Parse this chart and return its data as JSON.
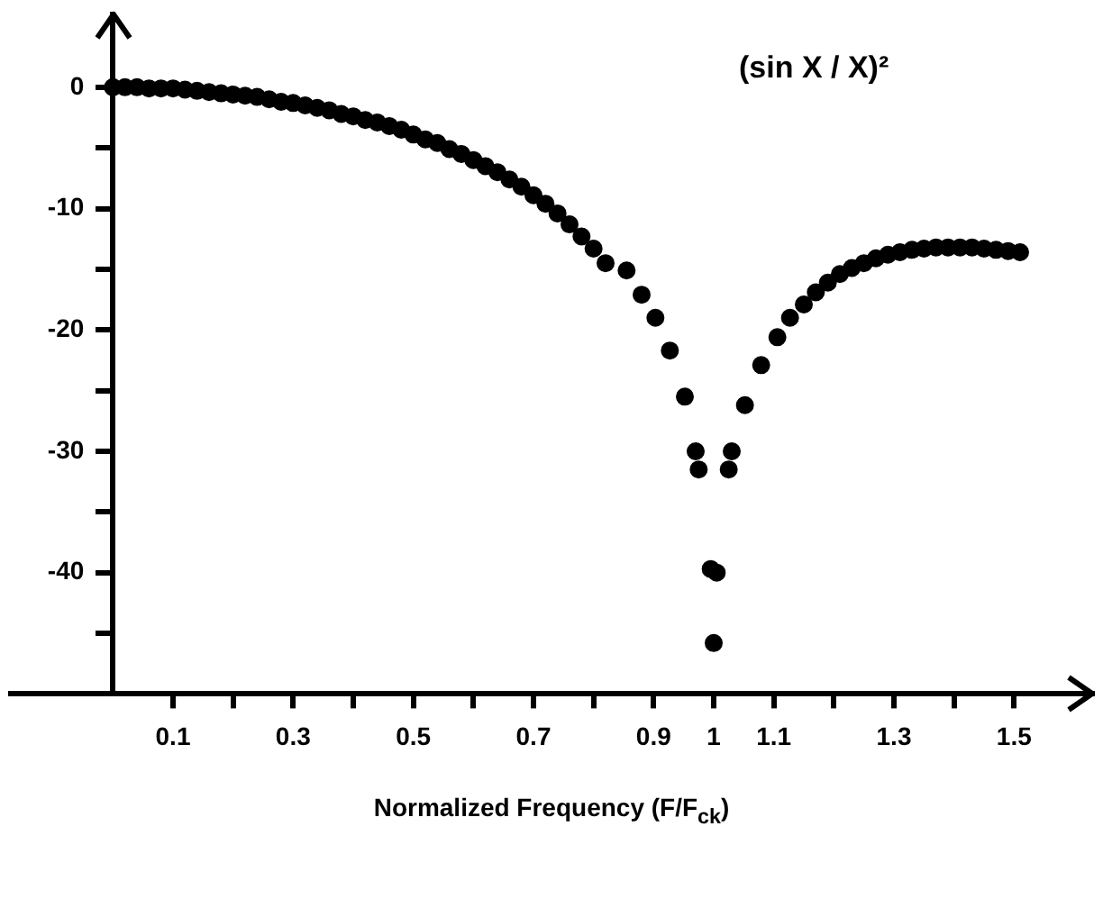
{
  "chart_data": {
    "type": "scatter",
    "xlabel": "Normalized Frequency (F/F$_{ck}$)",
    "annotations": [
      "(sin X / X)²"
    ],
    "marker": "circle",
    "grid": false,
    "legend": false,
    "xlim": [
      -0.17,
      1.63
    ],
    "ylim": [
      -50,
      6
    ],
    "xticks": [
      {
        "value": 0.1,
        "label": "0.1"
      },
      {
        "value": 0.2,
        "label": null
      },
      {
        "value": 0.3,
        "label": "0.3"
      },
      {
        "value": 0.4,
        "label": null
      },
      {
        "value": 0.5,
        "label": "0.5"
      },
      {
        "value": 0.6,
        "label": null
      },
      {
        "value": 0.7,
        "label": "0.7"
      },
      {
        "value": 0.8,
        "label": null
      },
      {
        "value": 0.9,
        "label": "0.9"
      },
      {
        "value": 1,
        "label": "1"
      },
      {
        "value": 1.1,
        "label": "1.1"
      },
      {
        "value": 1.2,
        "label": null
      },
      {
        "value": 1.3,
        "label": "1.3"
      },
      {
        "value": 1.4,
        "label": null
      },
      {
        "value": 1.5,
        "label": "1.5"
      }
    ],
    "yticks": [
      {
        "value": -45,
        "label": null
      },
      -40,
      {
        "value": -35,
        "label": null
      },
      -30,
      {
        "value": -25,
        "label": null
      },
      -20,
      {
        "value": -15,
        "label": null
      },
      -10,
      {
        "value": -5,
        "label": null
      },
      0
    ],
    "series": [
      {
        "color": "#000000",
        "x": [
          0,
          0.02,
          0.04,
          0.06,
          0.08,
          0.1,
          0.12,
          0.14,
          0.16,
          0.18,
          0.2,
          0.22,
          0.24,
          0.26,
          0.28,
          0.3,
          0.32,
          0.34,
          0.36,
          0.38,
          0.4,
          0.42,
          0.44,
          0.46,
          0.48,
          0.5,
          0.52,
          0.54,
          0.56,
          0.58,
          0.6,
          0.62,
          0.64,
          0.66,
          0.68,
          0.7,
          0.72,
          0.74,
          0.76,
          0.78,
          0.8,
          0.82,
          0.855,
          0.88,
          0.903,
          0.927,
          0.952,
          0.97,
          0.975,
          0.995,
          1.0,
          1.005,
          1.025,
          1.03,
          1.052,
          1.079,
          1.106,
          1.127,
          1.15,
          1.17,
          1.19,
          1.21,
          1.23,
          1.25,
          1.27,
          1.29,
          1.31,
          1.33,
          1.35,
          1.37,
          1.39,
          1.41,
          1.43,
          1.45,
          1.47,
          1.49,
          1.51
        ],
        "values": [
          0,
          0,
          0,
          -0.1,
          -0.1,
          -0.1,
          -0.2,
          -0.3,
          -0.4,
          -0.5,
          -0.6,
          -0.7,
          -0.8,
          -1,
          -1.2,
          -1.3,
          -1.5,
          -1.7,
          -1.9,
          -2.2,
          -2.4,
          -2.7,
          -2.9,
          -3.2,
          -3.5,
          -3.9,
          -4.3,
          -4.6,
          -5.1,
          -5.5,
          -6,
          -6.5,
          -7,
          -7.6,
          -8.2,
          -8.9,
          -9.6,
          -10.4,
          -11.3,
          -12.3,
          -13.3,
          -14.5,
          -15.1,
          -17.1,
          -19,
          -21.7,
          -25.5,
          -30,
          -31.5,
          -39.7,
          -45.8,
          -40,
          -31.5,
          -30,
          -26.2,
          -22.9,
          -20.6,
          -19,
          -17.9,
          -16.9,
          -16.1,
          -15.4,
          -14.9,
          -14.5,
          -14.1,
          -13.8,
          -13.6,
          -13.4,
          -13.3,
          -13.2,
          -13.2,
          -13.2,
          -13.2,
          -13.3,
          -13.4,
          -13.5,
          -13.6
        ]
      }
    ]
  }
}
